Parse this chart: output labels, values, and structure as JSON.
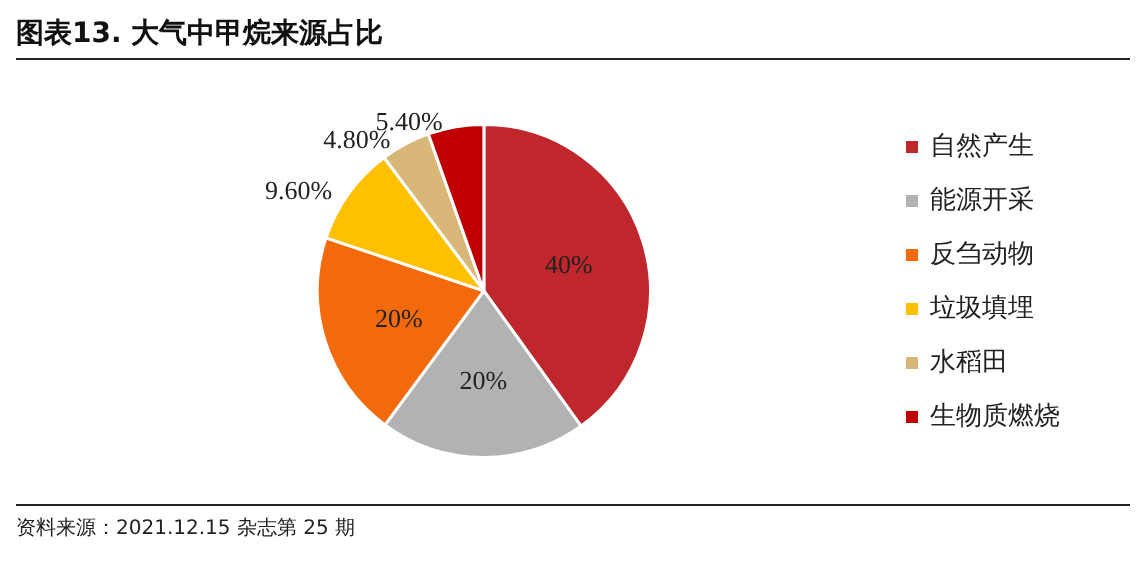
{
  "chart_data": {
    "type": "pie",
    "title": "图表13. 大气中甲烷来源占比",
    "categories": [
      "自然产生",
      "能源开采",
      "反刍动物",
      "垃圾填埋",
      "水稻田",
      "生物质燃烧"
    ],
    "values": [
      40,
      20,
      20,
      9.6,
      4.8,
      5.4
    ],
    "value_labels": [
      "40%",
      "20%",
      "20%",
      "9.60%",
      "4.80%",
      "5.40%"
    ],
    "colors": [
      "#c0272d",
      "#b2b2b2",
      "#f26a0c",
      "#ffc000",
      "#d9b779",
      "#c00000"
    ],
    "legend": "right",
    "annotations": [
      "资料来源：2021.12.15 杂志第 25 期"
    ]
  }
}
